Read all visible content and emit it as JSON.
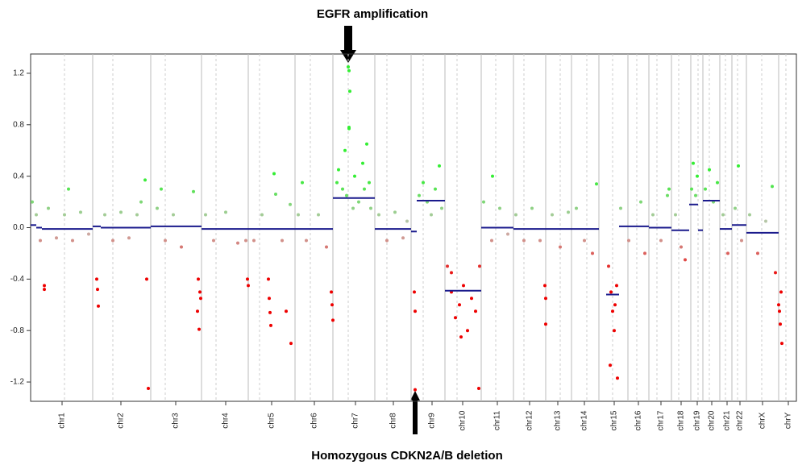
{
  "chart_data": {
    "type": "scatter",
    "annotations": [
      "EGFR amplification",
      "Homozygous CDKN2A/B deletion"
    ],
    "categories": [
      "chr1",
      "chr2",
      "chr3",
      "chr4",
      "chr5",
      "chr6",
      "chr7",
      "chr8",
      "chr9",
      "chr10",
      "chr11",
      "chr12",
      "chr13",
      "chr14",
      "chr15",
      "chr16",
      "chr17",
      "chr18",
      "chr19",
      "chr20",
      "chr21",
      "chr22",
      "chrX",
      "chrY"
    ],
    "category_x": [
      77,
      150,
      218,
      280,
      337,
      390,
      441,
      488,
      536,
      574,
      617,
      657,
      692,
      725,
      762,
      792,
      820,
      845,
      865,
      883,
      902,
      918,
      946,
      978
    ],
    "boundaries": [
      115,
      187,
      250,
      308,
      366,
      413,
      465,
      510,
      552,
      597,
      637,
      677,
      709,
      743,
      779,
      805,
      833,
      857,
      872,
      893,
      908,
      926,
      966
    ],
    "centromeres": [
      80,
      140,
      205,
      268,
      322,
      385,
      432,
      480,
      525,
      567,
      615,
      650,
      695,
      728,
      760,
      790,
      815,
      842,
      866,
      880,
      900,
      915,
      945,
      975
    ],
    "xlim": [
      38,
      988
    ],
    "ylim": [
      -1.35,
      1.35
    ],
    "yticks": [
      -1.2,
      -0.8,
      -0.4,
      {
        "value": 0,
        "label": "0.0"
      },
      0.4,
      0.8,
      1.2
    ],
    "positive_color": "#33ee33",
    "negative_color": "#ee0000",
    "neutral_color": "#c8c0b8",
    "segment_color": "#1a1a8c",
    "segments": [
      {
        "x0": 38,
        "x1": 45,
        "value": 0.02
      },
      {
        "x0": 45,
        "x1": 52,
        "value": 0.0
      },
      {
        "x0": 52,
        "x1": 115,
        "value": -0.01
      },
      {
        "x0": 115,
        "x1": 125,
        "value": 0.01
      },
      {
        "x0": 125,
        "x1": 187,
        "value": 0.0
      },
      {
        "x0": 187,
        "x1": 250,
        "value": 0.01
      },
      {
        "x0": 250,
        "x1": 308,
        "value": -0.01
      },
      {
        "x0": 308,
        "x1": 366,
        "value": -0.01
      },
      {
        "x0": 366,
        "x1": 413,
        "value": -0.01
      },
      {
        "x0": 413,
        "x1": 465,
        "value": 0.23
      },
      {
        "x0": 465,
        "x1": 510,
        "value": -0.01
      },
      {
        "x0": 510,
        "x1": 517,
        "value": -0.03
      },
      {
        "x0": 517,
        "x1": 552,
        "value": 0.21
      },
      {
        "x0": 552,
        "x1": 597,
        "value": -0.49
      },
      {
        "x0": 597,
        "x1": 637,
        "value": 0.0
      },
      {
        "x0": 637,
        "x1": 677,
        "value": -0.01
      },
      {
        "x0": 677,
        "x1": 709,
        "value": -0.01
      },
      {
        "x0": 709,
        "x1": 743,
        "value": -0.01
      },
      {
        "x0": 752,
        "x1": 768,
        "value": -0.52
      },
      {
        "x0": 768,
        "x1": 805,
        "value": 0.01
      },
      {
        "x0": 805,
        "x1": 833,
        "value": 0.0
      },
      {
        "x0": 833,
        "x1": 855,
        "value": -0.02
      },
      {
        "x0": 855,
        "x1": 866,
        "value": 0.18
      },
      {
        "x0": 866,
        "x1": 872,
        "value": -0.02
      },
      {
        "x0": 872,
        "x1": 893,
        "value": 0.21
      },
      {
        "x0": 893,
        "x1": 908,
        "value": -0.01
      },
      {
        "x0": 908,
        "x1": 926,
        "value": 0.02
      },
      {
        "x0": 926,
        "x1": 966,
        "value": -0.04
      }
    ],
    "x": [
      40,
      45,
      50,
      55,
      55,
      60,
      70,
      80,
      90,
      100,
      110,
      85,
      120,
      121,
      122,
      130,
      140,
      150,
      160,
      175,
      180,
      182,
      184,
      170,
      195,
      200,
      205,
      215,
      225,
      240,
      246,
      248,
      249,
      247,
      245,
      255,
      265,
      280,
      295,
      305,
      307,
      308,
      315,
      325,
      333,
      334,
      335,
      336,
      340,
      342,
      350,
      360,
      361,
      355,
      370,
      375,
      380,
      395,
      405,
      411,
      412,
      413,
      418,
      420,
      425,
      428,
      432,
      433,
      434,
      433,
      433,
      430,
      440,
      445,
      450,
      455,
      458,
      460,
      452,
      438,
      470,
      480,
      490,
      500,
      505,
      514,
      515,
      515,
      520,
      525,
      530,
      540,
      545,
      548,
      535,
      555,
      560,
      565,
      570,
      575,
      580,
      585,
      590,
      595,
      572,
      594,
      560,
      600,
      610,
      620,
      630,
      611,
      640,
      650,
      660,
      670,
      676,
      677,
      677,
      685,
      695,
      705,
      715,
      725,
      740,
      735,
      755,
      758,
      760,
      762,
      765,
      757,
      766,
      763,
      770,
      780,
      795,
      800,
      810,
      820,
      828,
      830,
      838,
      845,
      850,
      858,
      860,
      863,
      865,
      875,
      880,
      885,
      890,
      897,
      903,
      912,
      916,
      920,
      930,
      940,
      950,
      958,
      962,
      966,
      968,
      970,
      967,
      969
    ],
    "values": [
      0.2,
      0.1,
      -0.1,
      -0.45,
      -0.48,
      0.15,
      -0.08,
      0.1,
      -0.1,
      0.12,
      -0.05,
      0.3,
      -0.4,
      -0.48,
      -0.61,
      0.1,
      -0.1,
      0.12,
      -0.08,
      0.2,
      0.37,
      -0.4,
      -1.25,
      0.1,
      0.15,
      0.3,
      -0.1,
      0.1,
      -0.15,
      0.28,
      -0.4,
      -0.5,
      -0.55,
      -0.79,
      -0.65,
      0.1,
      -0.1,
      0.12,
      -0.12,
      -0.1,
      -0.4,
      -0.45,
      -0.1,
      0.1,
      -0.4,
      -0.55,
      -0.66,
      -0.76,
      0.42,
      0.26,
      -0.1,
      0.18,
      -0.9,
      -0.65,
      0.1,
      0.35,
      -0.1,
      0.1,
      -0.15,
      -0.5,
      -0.6,
      -0.72,
      0.35,
      0.45,
      0.3,
      0.6,
      1.25,
      1.22,
      1.06,
      0.77,
      0.78,
      0.25,
      0.4,
      0.2,
      0.5,
      0.65,
      0.35,
      0.15,
      0.3,
      0.15,
      0.1,
      -0.1,
      0.12,
      -0.08,
      0.05,
      -0.5,
      -0.65,
      -1.26,
      0.25,
      0.35,
      0.2,
      0.3,
      0.48,
      0.15,
      0.1,
      -0.3,
      -0.5,
      -0.7,
      -0.6,
      -0.45,
      -0.8,
      -0.55,
      -0.65,
      -0.3,
      -0.85,
      -1.25,
      -0.35,
      0.2,
      -0.1,
      0.15,
      -0.05,
      0.4,
      0.1,
      -0.1,
      0.15,
      -0.1,
      -0.45,
      -0.55,
      -0.75,
      0.1,
      -0.15,
      0.12,
      0.15,
      -0.1,
      0.34,
      -0.2,
      -0.3,
      -0.5,
      -0.65,
      -0.8,
      -0.45,
      -1.07,
      -1.17,
      -0.6,
      0.15,
      -0.1,
      0.2,
      -0.2,
      0.1,
      -0.1,
      0.25,
      0.3,
      0.1,
      -0.15,
      -0.25,
      0.3,
      0.5,
      0.25,
      0.4,
      0.3,
      0.45,
      0.2,
      0.35,
      0.1,
      -0.2,
      0.15,
      0.48,
      -0.1,
      0.1,
      -0.2,
      0.05,
      0.32,
      -0.35,
      -0.6,
      -0.75,
      -0.9,
      -0.65,
      -0.5
    ]
  }
}
